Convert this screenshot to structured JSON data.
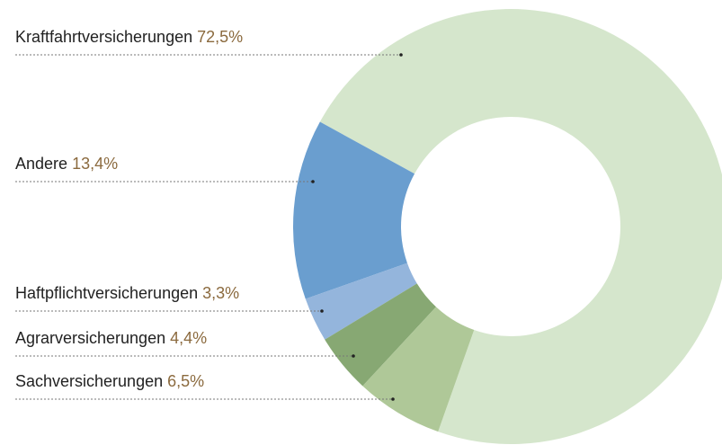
{
  "chart_data": {
    "type": "pie",
    "donut": true,
    "categories": [
      "Kraftfahrtversicherungen",
      "Andere",
      "Haftpflichtversicherungen",
      "Agrarversicherungen",
      "Sachversicherungen"
    ],
    "values": [
      72.5,
      13.4,
      3.3,
      4.4,
      6.5
    ],
    "value_labels": [
      "72,5%",
      "13,4%",
      "3,3%",
      "4,4%",
      "6,5%"
    ],
    "colors": [
      "#d5e6cc",
      "#6a9ecf",
      "#94b5dc",
      "#87a873",
      "#afc898"
    ]
  }
}
